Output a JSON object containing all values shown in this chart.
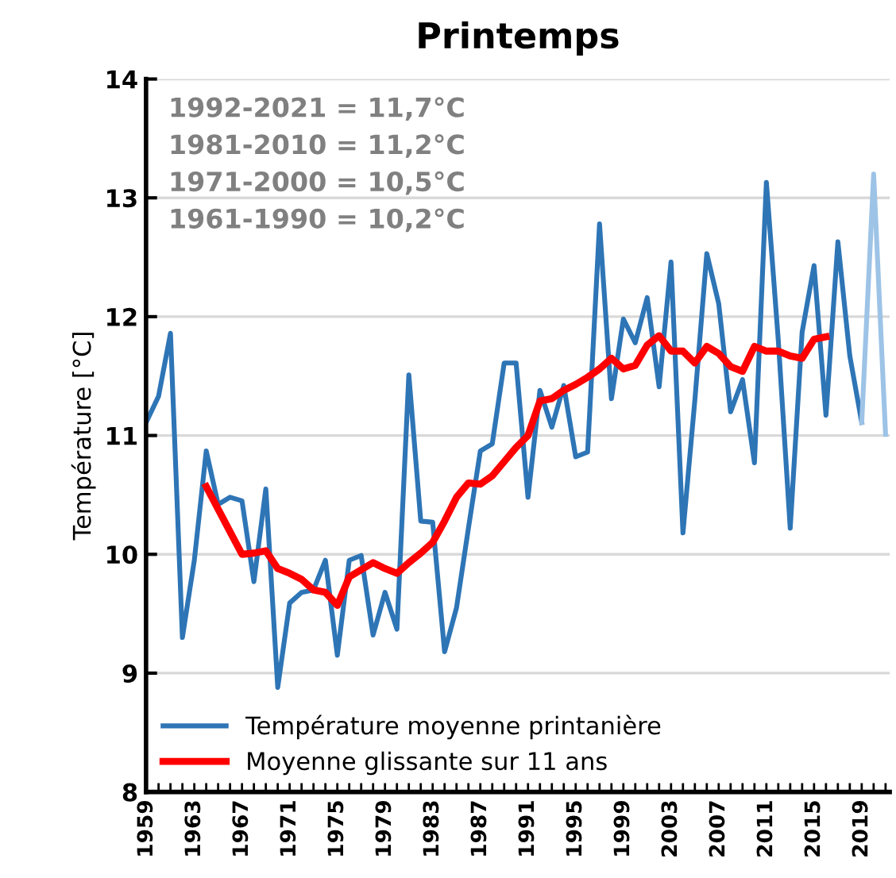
{
  "chart_data": {
    "type": "line",
    "title": "Printemps",
    "ylabel": "Température [°C]",
    "categories": [
      "1959",
      null,
      null,
      null,
      "1963",
      null,
      null,
      null,
      "1967",
      null,
      null,
      null,
      "1971",
      null,
      null,
      null,
      "1975",
      null,
      null,
      null,
      "1979",
      null,
      null,
      null,
      "1983",
      null,
      null,
      null,
      "1987",
      null,
      null,
      null,
      "1991",
      null,
      null,
      null,
      "1995",
      null,
      null,
      null,
      "1999",
      null,
      null,
      null,
      "2003",
      null,
      null,
      null,
      "2007",
      null,
      null,
      null,
      "2011",
      null,
      null,
      null,
      "2015",
      null,
      null,
      null,
      "2019",
      null,
      null
    ],
    "series": [
      {
        "name": "Température moyenne printanière",
        "color": "#2e75b6",
        "values": [
          11.12,
          11.33,
          11.86,
          9.3,
          9.95,
          10.87,
          10.42,
          10.48,
          10.45,
          9.77,
          10.55,
          8.88,
          9.59,
          9.68,
          9.7,
          9.95,
          9.15,
          9.95,
          9.99,
          9.32,
          9.68,
          9.37,
          11.51,
          10.28,
          10.27,
          9.18,
          9.55,
          10.22,
          10.87,
          10.93,
          11.61,
          11.61,
          10.48,
          11.38,
          11.07,
          11.42,
          10.82,
          10.86,
          12.78,
          11.31,
          11.98,
          11.78,
          12.16,
          11.41,
          12.46,
          10.18,
          11.3,
          12.53,
          12.11,
          11.2,
          11.47,
          10.77,
          13.13,
          11.8,
          10.22,
          11.87,
          12.43,
          11.17,
          12.63,
          11.67,
          11.11,
          null,
          null
        ]
      },
      {
        "color": "#9dc3e6",
        "values": [
          null,
          null,
          null,
          null,
          null,
          null,
          null,
          null,
          null,
          null,
          null,
          null,
          null,
          null,
          null,
          null,
          null,
          null,
          null,
          null,
          null,
          null,
          null,
          null,
          null,
          null,
          null,
          null,
          null,
          null,
          null,
          null,
          null,
          null,
          null,
          null,
          null,
          null,
          null,
          null,
          null,
          null,
          null,
          null,
          null,
          null,
          null,
          null,
          null,
          null,
          null,
          null,
          null,
          null,
          null,
          null,
          null,
          null,
          null,
          null,
          11.11,
          13.2,
          11.01
        ]
      },
      {
        "name": "Moyenne glissante sur 11 ans",
        "color": "#ff0000",
        "values": [
          null,
          null,
          null,
          null,
          null,
          10.57,
          10.38,
          10.19,
          10.0,
          10.01,
          10.03,
          9.88,
          9.84,
          9.79,
          9.7,
          9.68,
          9.57,
          9.81,
          9.87,
          9.93,
          9.88,
          9.84,
          9.93,
          10.01,
          10.1,
          10.28,
          10.48,
          10.6,
          10.59,
          10.66,
          10.78,
          10.9,
          11.0,
          11.29,
          11.31,
          11.38,
          11.43,
          11.49,
          11.56,
          11.65,
          11.56,
          11.59,
          11.76,
          11.84,
          11.71,
          11.71,
          11.61,
          11.75,
          11.69,
          11.58,
          11.54,
          11.75,
          11.71,
          11.71,
          11.67,
          11.65,
          11.81,
          11.83,
          null,
          null,
          null,
          null,
          null
        ]
      }
    ],
    "ylim": [
      8,
      14
    ],
    "yticks": [
      8,
      9,
      10,
      11,
      12,
      13,
      14
    ],
    "grid": "y",
    "legend": "bottom left",
    "marker": "none",
    "line_style": "solid",
    "annotations": [
      "1992-2021 = 11,7°C",
      "1981-2010 = 11,2°C",
      "1971-2000 = 10,5°C",
      "1961-1990 = 10,2°C"
    ]
  }
}
